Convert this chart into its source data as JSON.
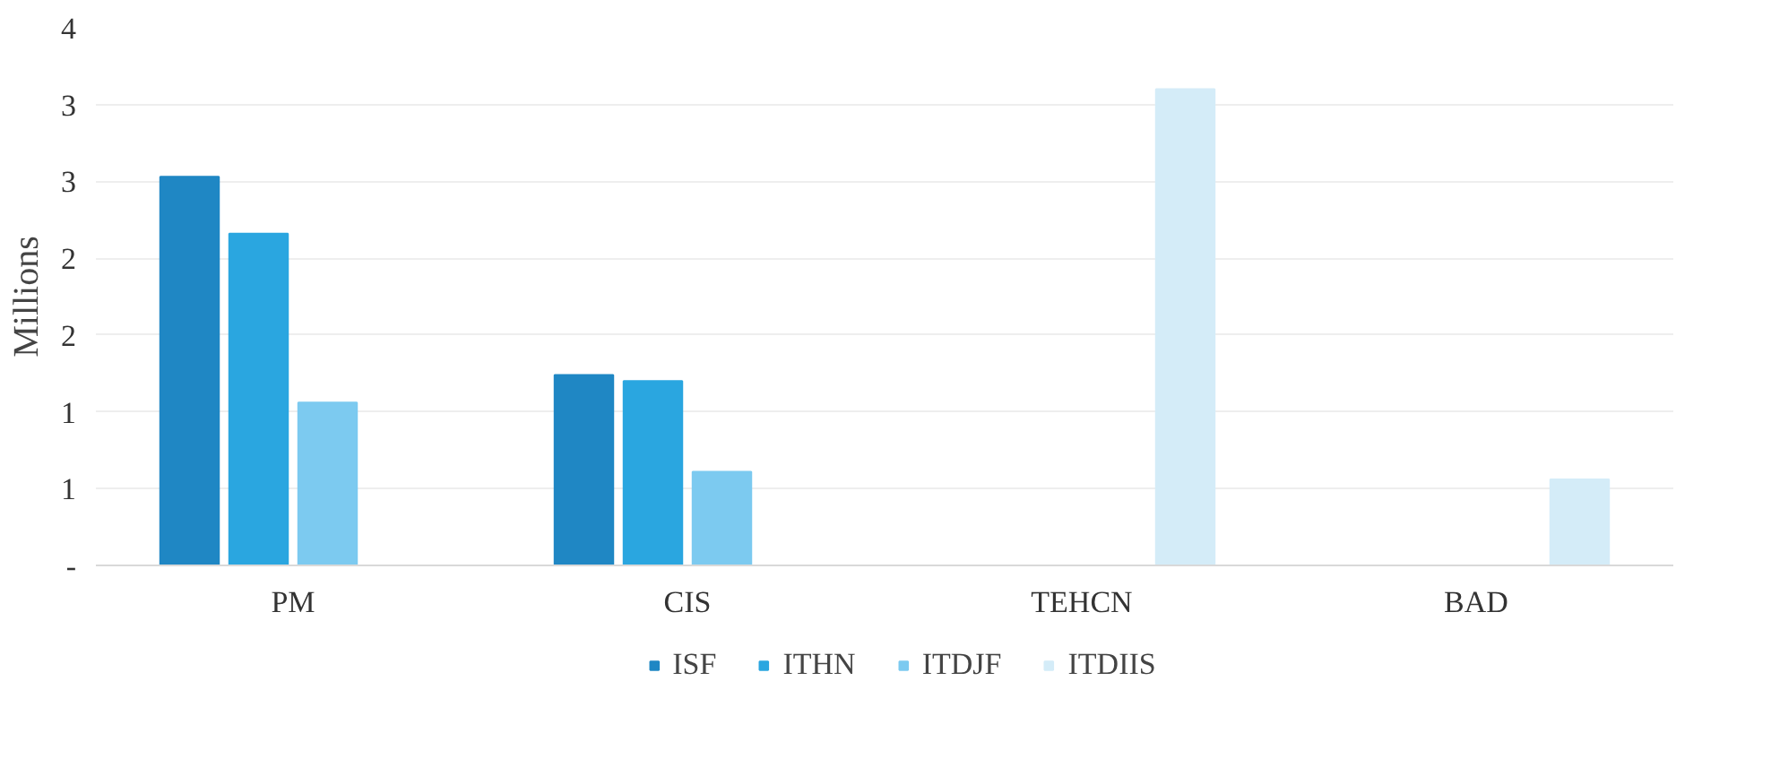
{
  "chart_data": {
    "type": "bar",
    "ylabel": "Millions",
    "categories": [
      "PM",
      "CIS",
      "TEHCN",
      "BAD"
    ],
    "series": [
      {
        "name": "ISF",
        "color": "#1f87c4",
        "values": [
          2.53,
          1.24,
          null,
          null
        ]
      },
      {
        "name": "ITHN",
        "color": "#2aa6e0",
        "values": [
          2.16,
          1.2,
          null,
          null
        ]
      },
      {
        "name": "ITDJF",
        "color": "#7ccaf0",
        "values": [
          1.06,
          0.61,
          null,
          null
        ]
      },
      {
        "name": "ITDIIS",
        "color": "#d4ecf8",
        "values": [
          null,
          null,
          3.1,
          0.56
        ]
      }
    ],
    "ylim": [
      0,
      3.5
    ],
    "yticks": [
      {
        "value": 0,
        "label": "-"
      },
      {
        "value": 0.5,
        "label": "1"
      },
      {
        "value": 1,
        "label": "1"
      },
      {
        "value": 1.5,
        "label": "2"
      },
      {
        "value": 2,
        "label": "2"
      },
      {
        "value": 2.5,
        "label": "3"
      },
      {
        "value": 3,
        "label": "3"
      },
      {
        "value": 3.5,
        "label": "4"
      }
    ],
    "grid": "y",
    "legend": "bottom"
  }
}
